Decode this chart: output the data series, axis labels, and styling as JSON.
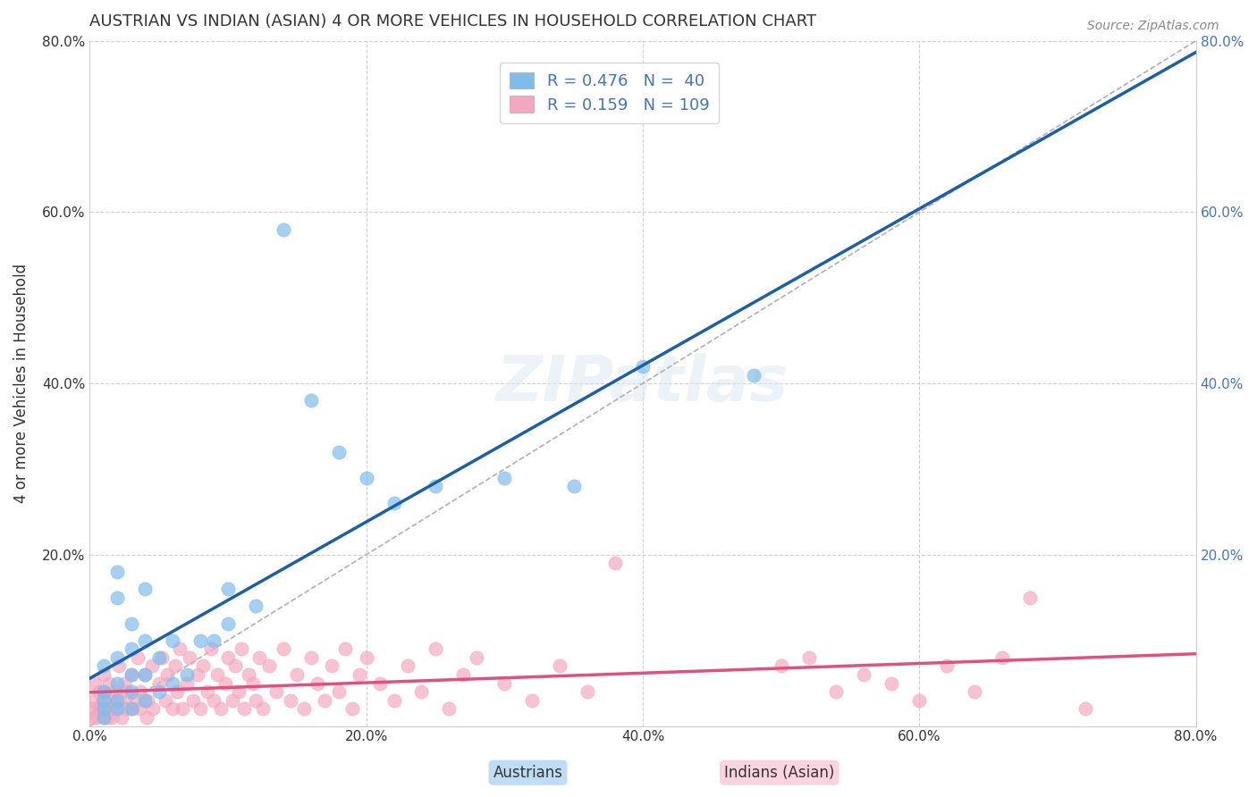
{
  "title": "AUSTRIAN VS INDIAN (ASIAN) 4 OR MORE VEHICLES IN HOUSEHOLD CORRELATION CHART",
  "source": "Source: ZipAtlas.com",
  "ylabel": "4 or more Vehicles in Household",
  "xlabel_austrians": "Austrians",
  "xlabel_indians": "Indians (Asian)",
  "xlim": [
    0,
    0.8
  ],
  "ylim": [
    0,
    0.8
  ],
  "xticks": [
    0.0,
    0.2,
    0.4,
    0.6,
    0.8
  ],
  "yticks": [
    0.0,
    0.2,
    0.4,
    0.6,
    0.8
  ],
  "xtick_labels": [
    "0.0%",
    "20.0%",
    "40.0%",
    "60.0%",
    "80.0%"
  ],
  "ytick_labels": [
    "",
    "20.0%",
    "40.0%",
    "60.0%",
    "80.0%"
  ],
  "blue_R": 0.476,
  "blue_N": 40,
  "pink_R": 0.159,
  "pink_N": 109,
  "blue_color": "#7fbcec",
  "pink_color": "#f4a8c0",
  "blue_line_color": "#1a5fa8",
  "pink_line_color": "#e05080",
  "watermark": "ZIPatlas",
  "legend_R_color": "#4472c4",
  "legend_N_color": "#4472c4",
  "blue_scatter_x": [
    0.01,
    0.01,
    0.01,
    0.01,
    0.01,
    0.02,
    0.02,
    0.02,
    0.02,
    0.02,
    0.02,
    0.03,
    0.03,
    0.03,
    0.03,
    0.03,
    0.04,
    0.04,
    0.04,
    0.04,
    0.05,
    0.05,
    0.06,
    0.06,
    0.07,
    0.08,
    0.09,
    0.1,
    0.1,
    0.12,
    0.14,
    0.16,
    0.18,
    0.2,
    0.22,
    0.25,
    0.3,
    0.35,
    0.4,
    0.48
  ],
  "blue_scatter_y": [
    0.01,
    0.02,
    0.03,
    0.04,
    0.07,
    0.02,
    0.03,
    0.05,
    0.08,
    0.15,
    0.18,
    0.02,
    0.04,
    0.06,
    0.09,
    0.12,
    0.03,
    0.06,
    0.1,
    0.16,
    0.04,
    0.08,
    0.05,
    0.1,
    0.06,
    0.1,
    0.1,
    0.12,
    0.16,
    0.14,
    0.58,
    0.38,
    0.32,
    0.29,
    0.26,
    0.28,
    0.29,
    0.28,
    0.42,
    0.41
  ],
  "pink_scatter_x": [
    0.001,
    0.002,
    0.003,
    0.004,
    0.005,
    0.006,
    0.007,
    0.008,
    0.009,
    0.01,
    0.01,
    0.01,
    0.011,
    0.012,
    0.013,
    0.014,
    0.015,
    0.016,
    0.017,
    0.018,
    0.02,
    0.021,
    0.022,
    0.023,
    0.025,
    0.026,
    0.027,
    0.03,
    0.031,
    0.032,
    0.035,
    0.036,
    0.037,
    0.04,
    0.041,
    0.042,
    0.045,
    0.046,
    0.05,
    0.052,
    0.055,
    0.056,
    0.06,
    0.062,
    0.063,
    0.065,
    0.067,
    0.07,
    0.072,
    0.075,
    0.078,
    0.08,
    0.082,
    0.085,
    0.088,
    0.09,
    0.092,
    0.095,
    0.098,
    0.1,
    0.103,
    0.105,
    0.108,
    0.11,
    0.112,
    0.115,
    0.118,
    0.12,
    0.123,
    0.125,
    0.13,
    0.135,
    0.14,
    0.145,
    0.15,
    0.155,
    0.16,
    0.165,
    0.17,
    0.175,
    0.18,
    0.185,
    0.19,
    0.195,
    0.2,
    0.21,
    0.22,
    0.23,
    0.24,
    0.25,
    0.26,
    0.27,
    0.28,
    0.3,
    0.32,
    0.34,
    0.36,
    0.38,
    0.5,
    0.52,
    0.54,
    0.56,
    0.58,
    0.6,
    0.62,
    0.64,
    0.66,
    0.68,
    0.72
  ],
  "pink_scatter_y": [
    0.02,
    0.01,
    0.03,
    0.05,
    0.01,
    0.02,
    0.04,
    0.02,
    0.03,
    0.01,
    0.04,
    0.06,
    0.02,
    0.03,
    0.01,
    0.05,
    0.02,
    0.01,
    0.03,
    0.04,
    0.02,
    0.07,
    0.03,
    0.01,
    0.05,
    0.02,
    0.04,
    0.06,
    0.02,
    0.03,
    0.08,
    0.02,
    0.04,
    0.06,
    0.01,
    0.03,
    0.07,
    0.02,
    0.05,
    0.08,
    0.03,
    0.06,
    0.02,
    0.07,
    0.04,
    0.09,
    0.02,
    0.05,
    0.08,
    0.03,
    0.06,
    0.02,
    0.07,
    0.04,
    0.09,
    0.03,
    0.06,
    0.02,
    0.05,
    0.08,
    0.03,
    0.07,
    0.04,
    0.09,
    0.02,
    0.06,
    0.05,
    0.03,
    0.08,
    0.02,
    0.07,
    0.04,
    0.09,
    0.03,
    0.06,
    0.02,
    0.08,
    0.05,
    0.03,
    0.07,
    0.04,
    0.09,
    0.02,
    0.06,
    0.08,
    0.05,
    0.03,
    0.07,
    0.04,
    0.09,
    0.02,
    0.06,
    0.08,
    0.05,
    0.03,
    0.07,
    0.04,
    0.19,
    0.07,
    0.08,
    0.04,
    0.06,
    0.05,
    0.03,
    0.07,
    0.04,
    0.08,
    0.15,
    0.02
  ]
}
